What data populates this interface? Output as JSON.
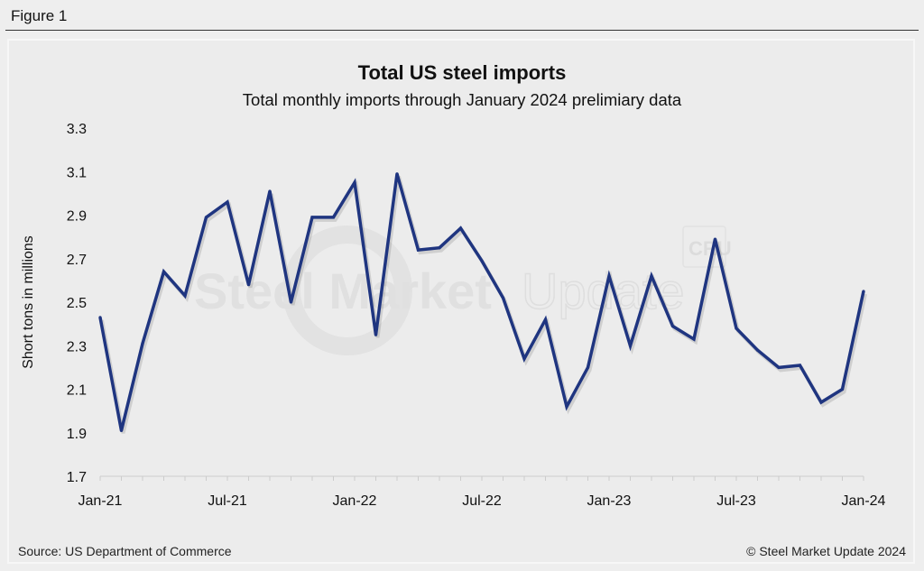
{
  "figure_label": "Figure 1",
  "footer": {
    "source": "Source: US Department of Commerce",
    "copyright": "© Steel Market Update 2024"
  },
  "watermark": {
    "text_bold": "Steel Market",
    "text_light": "Update",
    "badge": "CRU"
  },
  "colors": {
    "line": "#1f3580",
    "background": "#eeeeee",
    "axis": "#cccccc"
  },
  "chart_data": {
    "type": "line",
    "title": "Total US steel imports",
    "subtitle": "Total monthly imports through January 2024 prelimiary data",
    "xlabel": "",
    "ylabel": "Short tons in millions",
    "ylim": [
      1.7,
      3.3
    ],
    "yticks": [
      "3.3",
      "3.1",
      "2.9",
      "2.7",
      "2.5",
      "2.3",
      "2.1",
      "1.9",
      "1.7"
    ],
    "ytick_values": [
      3.3,
      3.1,
      2.9,
      2.7,
      2.5,
      2.3,
      2.1,
      1.9,
      1.7
    ],
    "xtick_labels": [
      "Jan-21",
      "Jul-21",
      "Jan-22",
      "Jul-22",
      "Jan-23",
      "Jul-23",
      "Jan-24"
    ],
    "xtick_indices": [
      0,
      6,
      12,
      18,
      24,
      30,
      36
    ],
    "grid": false,
    "legend": "none",
    "x": [
      "Jan-21",
      "Feb-21",
      "Mar-21",
      "Apr-21",
      "May-21",
      "Jun-21",
      "Jul-21",
      "Aug-21",
      "Sep-21",
      "Oct-21",
      "Nov-21",
      "Dec-21",
      "Jan-22",
      "Feb-22",
      "Mar-22",
      "Apr-22",
      "May-22",
      "Jun-22",
      "Jul-22",
      "Aug-22",
      "Sep-22",
      "Oct-22",
      "Nov-22",
      "Dec-22",
      "Jan-23",
      "Feb-23",
      "Mar-23",
      "Apr-23",
      "May-23",
      "Jun-23",
      "Jul-23",
      "Aug-23",
      "Sep-23",
      "Oct-23",
      "Nov-23",
      "Dec-23",
      "Jan-24"
    ],
    "series": [
      {
        "name": "Total US steel imports",
        "values": [
          2.43,
          1.91,
          2.31,
          2.64,
          2.53,
          2.89,
          2.96,
          2.58,
          3.01,
          2.5,
          2.89,
          2.89,
          3.05,
          2.35,
          3.09,
          2.74,
          2.75,
          2.84,
          2.69,
          2.52,
          2.24,
          2.42,
          2.02,
          2.2,
          2.62,
          2.3,
          2.62,
          2.39,
          2.33,
          2.79,
          2.38,
          2.28,
          2.2,
          2.21,
          2.04,
          2.1,
          2.55
        ]
      }
    ]
  }
}
